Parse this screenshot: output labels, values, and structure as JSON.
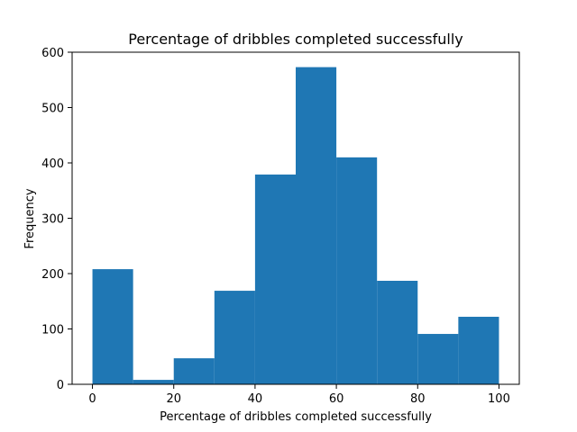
{
  "chart_data": {
    "type": "bar",
    "title": "Percentage of dribbles completed successfully",
    "xlabel": "Percentage of dribbles completed successfully",
    "ylabel": "Frequency",
    "bin_edges": [
      0,
      10,
      20,
      30,
      40,
      50,
      60,
      70,
      80,
      90,
      100
    ],
    "values": [
      208,
      8,
      47,
      169,
      379,
      573,
      410,
      187,
      91,
      122
    ],
    "xlim": [
      -5,
      105
    ],
    "ylim": [
      0,
      600
    ],
    "xticks": [
      0,
      20,
      40,
      60,
      80,
      100
    ],
    "yticks": [
      0,
      100,
      200,
      300,
      400,
      500,
      600
    ],
    "bar_color": "#1f77b4",
    "grid": false,
    "legend": "none"
  }
}
